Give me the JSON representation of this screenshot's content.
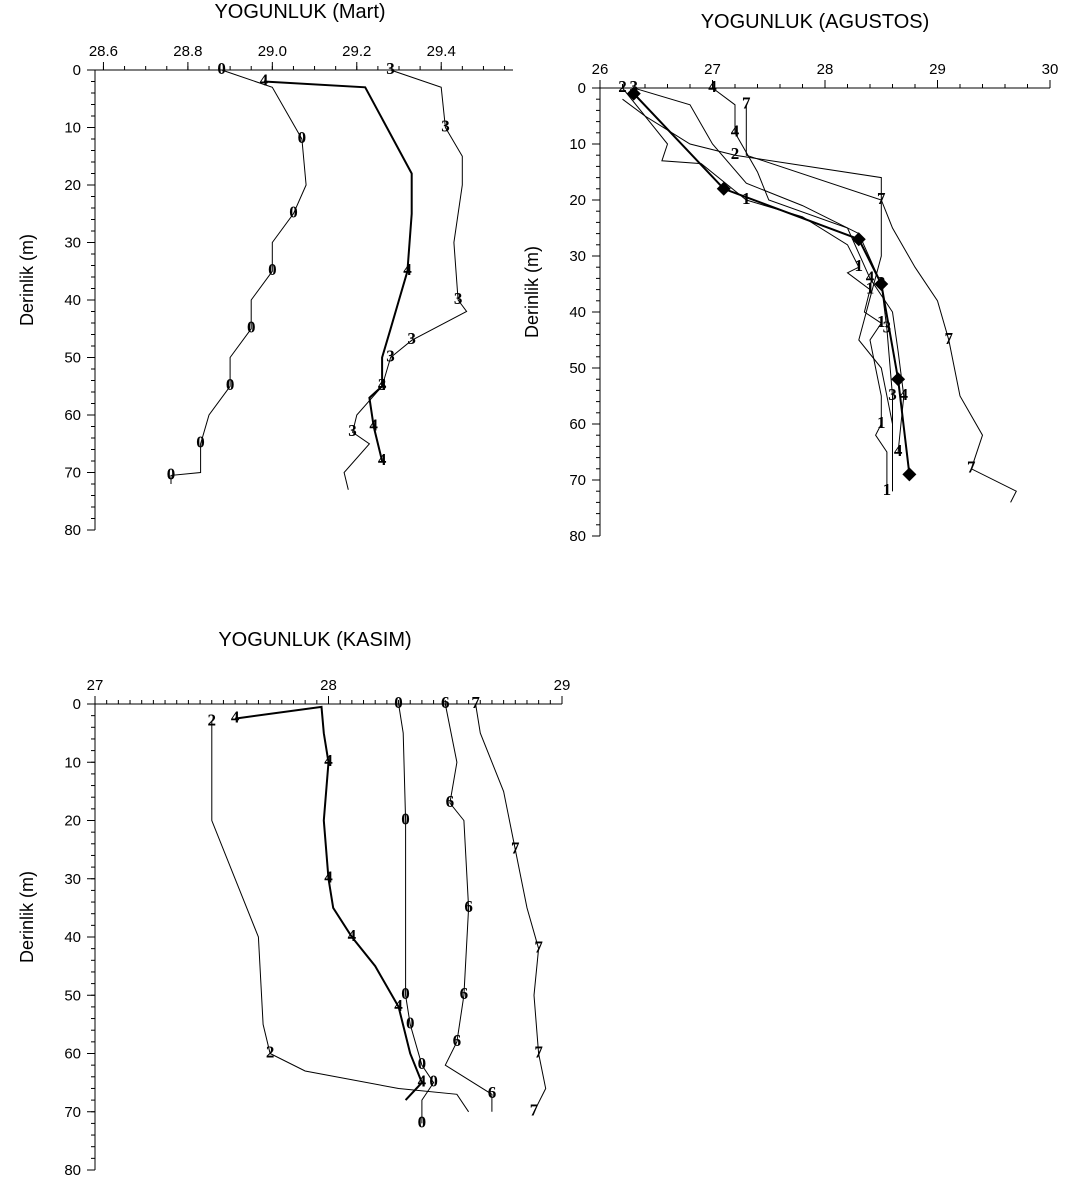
{
  "chart_data": [
    {
      "type": "line",
      "title": "YOGUNLUK (Mart)",
      "ylabel": "Derinlik (m)",
      "xlim": [
        28.58,
        29.57
      ],
      "xticks": [
        28.6,
        28.8,
        {
          "value": 29.0,
          "label": "29.0"
        },
        29.2,
        29.4
      ],
      "ylim": [
        0,
        80
      ],
      "yticks": [
        0,
        10,
        20,
        30,
        40,
        50,
        60,
        70,
        80
      ],
      "y_reversed": true,
      "series": [
        {
          "name": "0",
          "color": "#000000",
          "depths": [
            0,
            3,
            12,
            20,
            25,
            30,
            35,
            40,
            45,
            50,
            55,
            60,
            65,
            70,
            70.5,
            72
          ],
          "values": [
            28.88,
            29.0,
            29.07,
            29.08,
            29.05,
            29.0,
            29.0,
            28.95,
            28.95,
            28.9,
            28.9,
            28.85,
            28.83,
            28.83,
            28.76,
            28.76
          ]
        },
        {
          "name": "4",
          "color": "#000000",
          "thick": true,
          "depths": [
            2,
            3,
            18,
            25,
            35,
            40,
            45,
            50,
            55,
            57,
            62,
            68
          ],
          "values": [
            28.98,
            29.22,
            29.33,
            29.33,
            29.32,
            29.3,
            29.28,
            29.26,
            29.26,
            29.23,
            29.24,
            29.26
          ]
        },
        {
          "name": "3",
          "color": "#000000",
          "depths": [
            0,
            3,
            10,
            15,
            20,
            30,
            40,
            42,
            47,
            50,
            55,
            60,
            63,
            65,
            70,
            73
          ],
          "values": [
            29.28,
            29.4,
            29.41,
            29.45,
            29.45,
            29.43,
            29.44,
            29.46,
            29.33,
            29.28,
            29.26,
            29.2,
            29.19,
            29.23,
            29.17,
            29.18
          ]
        }
      ]
    },
    {
      "type": "line",
      "title": "YOGUNLUK (AGUSTOS)",
      "ylabel": "Derinlik (m)",
      "xlim": [
        26,
        30
      ],
      "xticks": [
        26,
        27,
        28,
        29,
        30
      ],
      "ylim": [
        0,
        80
      ],
      "yticks": [
        0,
        10,
        20,
        30,
        40,
        50,
        60,
        70,
        80
      ],
      "y_reversed": true,
      "series": [
        {
          "name": "1",
          "color": "#000000",
          "depths": [
            2,
            5,
            10,
            13,
            13.5,
            20,
            23,
            28,
            32,
            33,
            36,
            40,
            42,
            45,
            50,
            55,
            60,
            62,
            65,
            72
          ],
          "values": [
            26.2,
            26.4,
            26.6,
            26.55,
            26.9,
            27.3,
            27.8,
            28.2,
            28.3,
            28.2,
            28.4,
            28.35,
            28.5,
            28.4,
            28.45,
            28.5,
            28.5,
            28.45,
            28.55,
            28.55
          ]
        },
        {
          "name": "2",
          "color": "#000000",
          "depths": [
            0,
            5,
            10,
            12,
            16,
            30,
            45,
            50,
            60,
            72
          ],
          "values": [
            26.2,
            26.4,
            26.8,
            27.2,
            28.5,
            28.5,
            28.3,
            28.5,
            28.6,
            28.6
          ]
        },
        {
          "name": "3",
          "color": "#000000",
          "depths": [
            0,
            3,
            10,
            17,
            21,
            26,
            35,
            43,
            55,
            65,
            72
          ],
          "values": [
            26.3,
            26.8,
            27.0,
            27.3,
            27.8,
            28.3,
            28.5,
            28.55,
            28.6,
            28.6,
            28.6
          ]
        },
        {
          "name": "4",
          "color": "#000000",
          "depths": [
            0,
            3,
            8,
            15,
            20,
            25,
            34,
            40,
            47,
            55,
            65
          ],
          "values": [
            27.0,
            27.2,
            27.2,
            27.4,
            27.5,
            28.2,
            28.4,
            28.6,
            28.65,
            28.7,
            28.65
          ]
        },
        {
          "name": "7",
          "color": "#000000",
          "depths": [
            3,
            12,
            20,
            25,
            32,
            38,
            45,
            55,
            62,
            68,
            72,
            74
          ],
          "values": [
            27.3,
            27.3,
            28.5,
            28.6,
            28.8,
            29.0,
            29.1,
            29.2,
            29.4,
            29.3,
            29.7,
            29.65
          ]
        },
        {
          "color": "#000000",
          "thick": true,
          "marker": "diamond",
          "depths": [
            1,
            18,
            27,
            35,
            52,
            69
          ],
          "values": [
            26.3,
            27.1,
            28.3,
            28.5,
            28.65,
            28.75
          ]
        }
      ]
    },
    {
      "type": "line",
      "title": "YOGUNLUK (KASIM)",
      "ylabel": "Derinlik (m)",
      "xlim": [
        27,
        29
      ],
      "xticks": [
        27,
        28,
        29
      ],
      "ylim": [
        0,
        80
      ],
      "yticks": [
        0,
        10,
        20,
        30,
        40,
        50,
        60,
        70,
        80
      ],
      "y_reversed": true,
      "series": [
        {
          "name": "2",
          "color": "#000000",
          "depths": [
            3,
            20,
            30,
            40,
            55,
            60,
            63,
            66,
            67,
            70
          ],
          "values": [
            27.5,
            27.5,
            27.6,
            27.7,
            27.72,
            27.75,
            27.9,
            28.3,
            28.55,
            28.6
          ]
        },
        {
          "name": "4",
          "color": "#000000",
          "thick": true,
          "depths": [
            2.5,
            0.5,
            5,
            10,
            20,
            30,
            35,
            40,
            45,
            52,
            60,
            65,
            68
          ],
          "values": [
            27.6,
            27.97,
            27.98,
            28.0,
            27.98,
            28.0,
            28.02,
            28.1,
            28.2,
            28.3,
            28.35,
            28.4,
            28.33
          ]
        },
        {
          "name": "0",
          "color": "#000000",
          "depths": [
            0,
            5,
            20,
            50,
            55,
            62,
            65,
            68,
            72
          ],
          "values": [
            28.3,
            28.32,
            28.33,
            28.33,
            28.35,
            28.4,
            28.45,
            28.4,
            28.4
          ]
        },
        {
          "name": "6",
          "color": "#000000",
          "depths": [
            0,
            10,
            17,
            20,
            35,
            50,
            58,
            62,
            67,
            70
          ],
          "values": [
            28.5,
            28.55,
            28.52,
            28.58,
            28.6,
            28.58,
            28.55,
            28.5,
            28.7,
            28.7
          ]
        },
        {
          "name": "7",
          "color": "#000000",
          "depths": [
            0,
            5,
            15,
            25,
            35,
            42,
            50,
            60,
            66,
            70
          ],
          "values": [
            28.63,
            28.65,
            28.75,
            28.8,
            28.85,
            28.9,
            28.88,
            28.9,
            28.93,
            28.88
          ]
        }
      ]
    }
  ]
}
